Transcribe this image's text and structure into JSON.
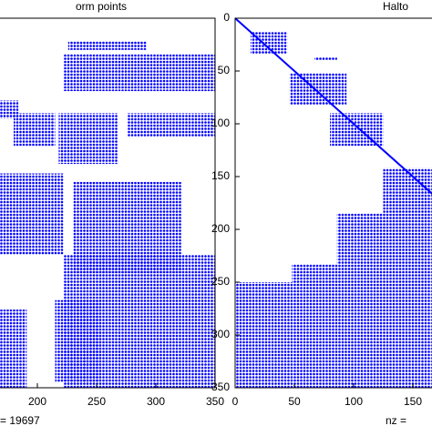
{
  "chart_data": [
    {
      "type": "spy",
      "title": "orm points",
      "xlabel": "= 19697",
      "color": "#0000ff",
      "xlim": [
        0,
        350
      ],
      "ylim": [
        0,
        350
      ],
      "xticks": [
        200,
        250,
        300,
        350
      ],
      "yticks": [],
      "diagonal": false,
      "blocks": [
        {
          "cols": [
            226,
            292
          ],
          "rows": [
            22,
            30
          ]
        },
        {
          "cols": [
            222,
            350
          ],
          "rows": [
            34,
            69
          ]
        },
        {
          "cols": [
            168,
            184
          ],
          "rows": [
            78,
            95
          ]
        },
        {
          "cols": [
            180,
            215
          ],
          "rows": [
            90,
            121
          ]
        },
        {
          "cols": [
            218,
            268
          ],
          "rows": [
            90,
            138
          ]
        },
        {
          "cols": [
            276,
            350
          ],
          "rows": [
            90,
            112
          ]
        },
        {
          "cols": [
            168,
            222
          ],
          "rows": [
            147,
            224
          ]
        },
        {
          "cols": [
            230,
            322
          ],
          "rows": [
            155,
            241
          ]
        },
        {
          "cols": [
            222,
            350
          ],
          "rows": [
            224,
            350
          ]
        },
        {
          "cols": [
            215,
            253
          ],
          "rows": [
            267,
            345
          ]
        },
        {
          "cols": [
            168,
            191
          ],
          "rows": [
            276,
            350
          ]
        }
      ]
    },
    {
      "type": "spy",
      "title": "Halto",
      "xlabel": "nz =",
      "color": "#0000ff",
      "xlim": [
        0,
        350
      ],
      "ylim": [
        0,
        350
      ],
      "xticks": [
        0,
        50,
        100,
        150
      ],
      "yticks": [
        0,
        50,
        100,
        150,
        200,
        250,
        300,
        350
      ],
      "diagonal": true,
      "blocks": [
        {
          "cols": [
            13,
            44
          ],
          "rows": [
            13,
            34
          ]
        },
        {
          "cols": [
            67,
            86
          ],
          "rows": [
            37,
            40
          ]
        },
        {
          "cols": [
            46,
            94
          ],
          "rows": [
            52,
            82
          ]
        },
        {
          "cols": [
            80,
            125
          ],
          "rows": [
            90,
            121
          ]
        },
        {
          "cols": [
            125,
            166
          ],
          "rows": [
            142,
            185
          ]
        },
        {
          "cols": [
            86,
            166
          ],
          "rows": [
            185,
            233
          ]
        },
        {
          "cols": [
            0,
            48
          ],
          "rows": [
            250,
            350
          ]
        },
        {
          "cols": [
            48,
            166
          ],
          "rows": [
            233,
            350
          ]
        }
      ]
    }
  ]
}
